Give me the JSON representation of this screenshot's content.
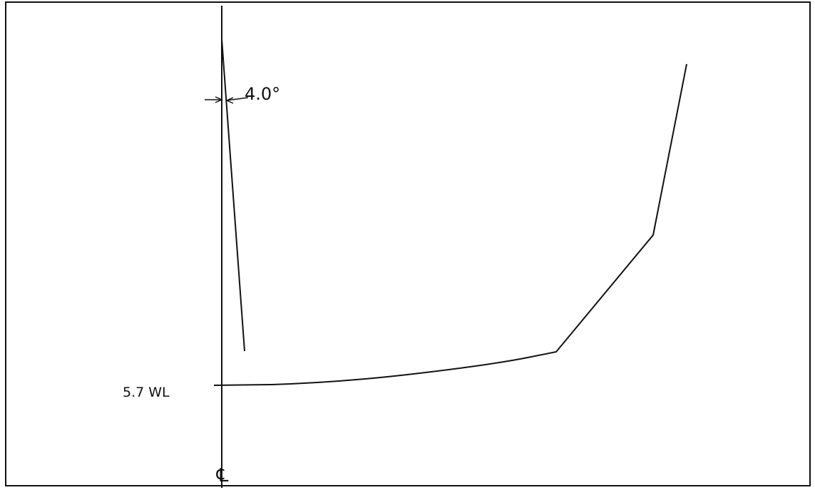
{
  "labels": {
    "angle": "4.0°",
    "waterline": "5.7 WL",
    "centerline": "℄"
  }
}
